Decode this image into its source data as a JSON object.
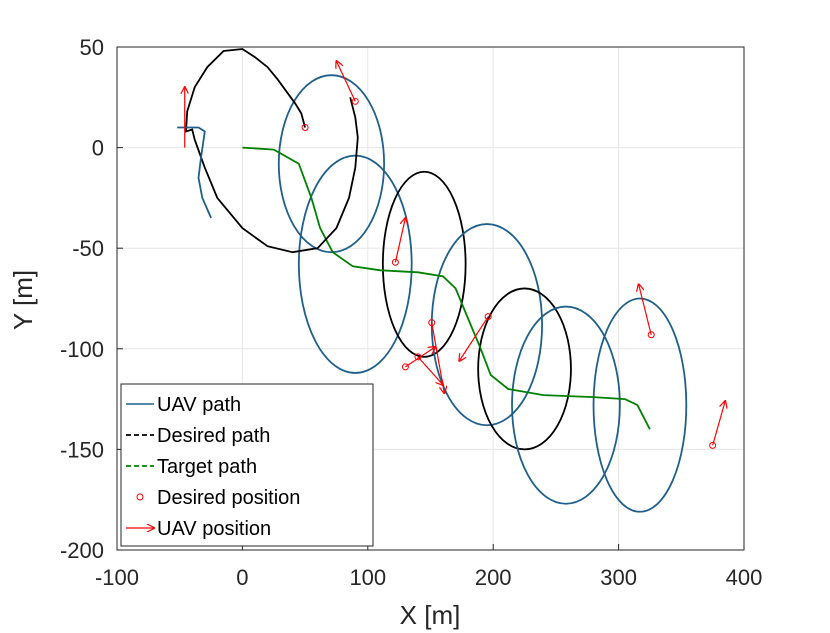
{
  "chart_data": {
    "type": "line",
    "xlabel": "X [m]",
    "ylabel": "Y [m]",
    "xlim": [
      -100,
      400
    ],
    "ylim": [
      -200,
      50
    ],
    "xticks": [
      -100,
      0,
      100,
      200,
      300,
      400
    ],
    "yticks": [
      50,
      0,
      -50,
      -100,
      -150,
      -200
    ],
    "grid": true,
    "legend_position": "bottom-left",
    "legend": [
      {
        "label": "UAV path",
        "color": "#1f5f8b",
        "style": "solid"
      },
      {
        "label": "Desired path",
        "color": "#000000",
        "style": "dashed"
      },
      {
        "label": "Target path",
        "color": "#008000",
        "style": "dashed"
      },
      {
        "label": "Desired position",
        "color": "#ff0000",
        "style": "circle-marker"
      },
      {
        "label": "UAV position",
        "color": "#ff0000",
        "style": "arrow"
      }
    ],
    "series": [
      {
        "name": "Target path",
        "color": "#008000",
        "points": [
          [
            0,
            0
          ],
          [
            25,
            -1
          ],
          [
            45,
            -8
          ],
          [
            55,
            -25
          ],
          [
            62,
            -40
          ],
          [
            72,
            -52
          ],
          [
            88,
            -59
          ],
          [
            110,
            -61
          ],
          [
            140,
            -62
          ],
          [
            160,
            -64
          ],
          [
            170,
            -70
          ],
          [
            180,
            -85
          ],
          [
            190,
            -100
          ],
          [
            198,
            -113
          ],
          [
            212,
            -120
          ],
          [
            240,
            -123
          ],
          [
            280,
            -124
          ],
          [
            305,
            -125
          ],
          [
            315,
            -128
          ],
          [
            325,
            -140
          ]
        ]
      },
      {
        "name": "Desired path",
        "color": "#000000",
        "points": [
          [
            50,
            10
          ],
          [
            47,
            17
          ],
          [
            42,
            22
          ],
          [
            35,
            28
          ],
          [
            28,
            34
          ],
          [
            20,
            40
          ],
          [
            10,
            45
          ],
          [
            0,
            49
          ],
          [
            -15,
            48
          ],
          [
            -28,
            40
          ],
          [
            -38,
            30
          ],
          [
            -44,
            18
          ],
          [
            -45,
            8
          ],
          [
            -40,
            9
          ],
          [
            -38,
            4
          ],
          [
            -30,
            -10
          ],
          [
            -20,
            -25
          ],
          [
            0,
            -40
          ],
          [
            20,
            -49
          ],
          [
            40,
            -52
          ],
          [
            60,
            -50
          ],
          [
            75,
            -40
          ],
          [
            85,
            -25
          ],
          [
            90,
            -10
          ],
          [
            92,
            5
          ],
          [
            90,
            15
          ],
          [
            86,
            25
          ]
        ]
      },
      {
        "name": "UAV path",
        "color": "#1f5f8b",
        "points": [
          [
            -25,
            -35
          ],
          [
            -32,
            -25
          ],
          [
            -35,
            -15
          ],
          [
            -33,
            -5
          ],
          [
            -30,
            8
          ],
          [
            -35,
            10
          ],
          [
            -45,
            10
          ],
          [
            -52,
            10
          ]
        ]
      }
    ],
    "loops": [
      {
        "cx": 71,
        "cy": -8,
        "rx": 42,
        "ry": 44,
        "color": "#1f5f8b"
      },
      {
        "cx": 90,
        "cy": -58,
        "rx": 45,
        "ry": 54,
        "color": "#1f5f8b"
      },
      {
        "cx": 145,
        "cy": -58,
        "rx": 33,
        "ry": 46,
        "color": "#000000"
      },
      {
        "cx": 195,
        "cy": -88,
        "rx": 44,
        "ry": 50,
        "color": "#1f5f8b"
      },
      {
        "cx": 225,
        "cy": -110,
        "rx": 37,
        "ry": 40,
        "color": "#000000"
      },
      {
        "cx": 258,
        "cy": -128,
        "rx": 43,
        "ry": 49,
        "color": "#1f5f8b"
      },
      {
        "cx": 317,
        "cy": -128,
        "rx": 37,
        "ry": 53,
        "color": "#1f5f8b"
      }
    ],
    "desired_positions": [
      [
        50,
        10
      ],
      [
        90,
        23
      ],
      [
        122,
        -57
      ],
      [
        130,
        -109
      ],
      [
        140,
        -104
      ],
      [
        151,
        -87
      ],
      [
        196,
        -84
      ],
      [
        326,
        -93
      ],
      [
        375,
        -148
      ]
    ],
    "uav_positions": [
      {
        "x": -46,
        "y": 0,
        "dx": 0,
        "dy": 30
      },
      {
        "x": 90,
        "y": 23,
        "dx": -15,
        "dy": 20
      },
      {
        "x": 122,
        "y": -57,
        "dx": 8,
        "dy": 22
      },
      {
        "x": 130,
        "y": -109,
        "dx": 24,
        "dy": 10
      },
      {
        "x": 140,
        "y": -104,
        "dx": 20,
        "dy": -14
      },
      {
        "x": 151,
        "y": -87,
        "dx": 10,
        "dy": -35
      },
      {
        "x": 196,
        "y": -84,
        "dx": -23,
        "dy": -22
      },
      {
        "x": 326,
        "y": -93,
        "dx": -10,
        "dy": 25
      },
      {
        "x": 375,
        "y": -148,
        "dx": 10,
        "dy": 22
      }
    ]
  }
}
